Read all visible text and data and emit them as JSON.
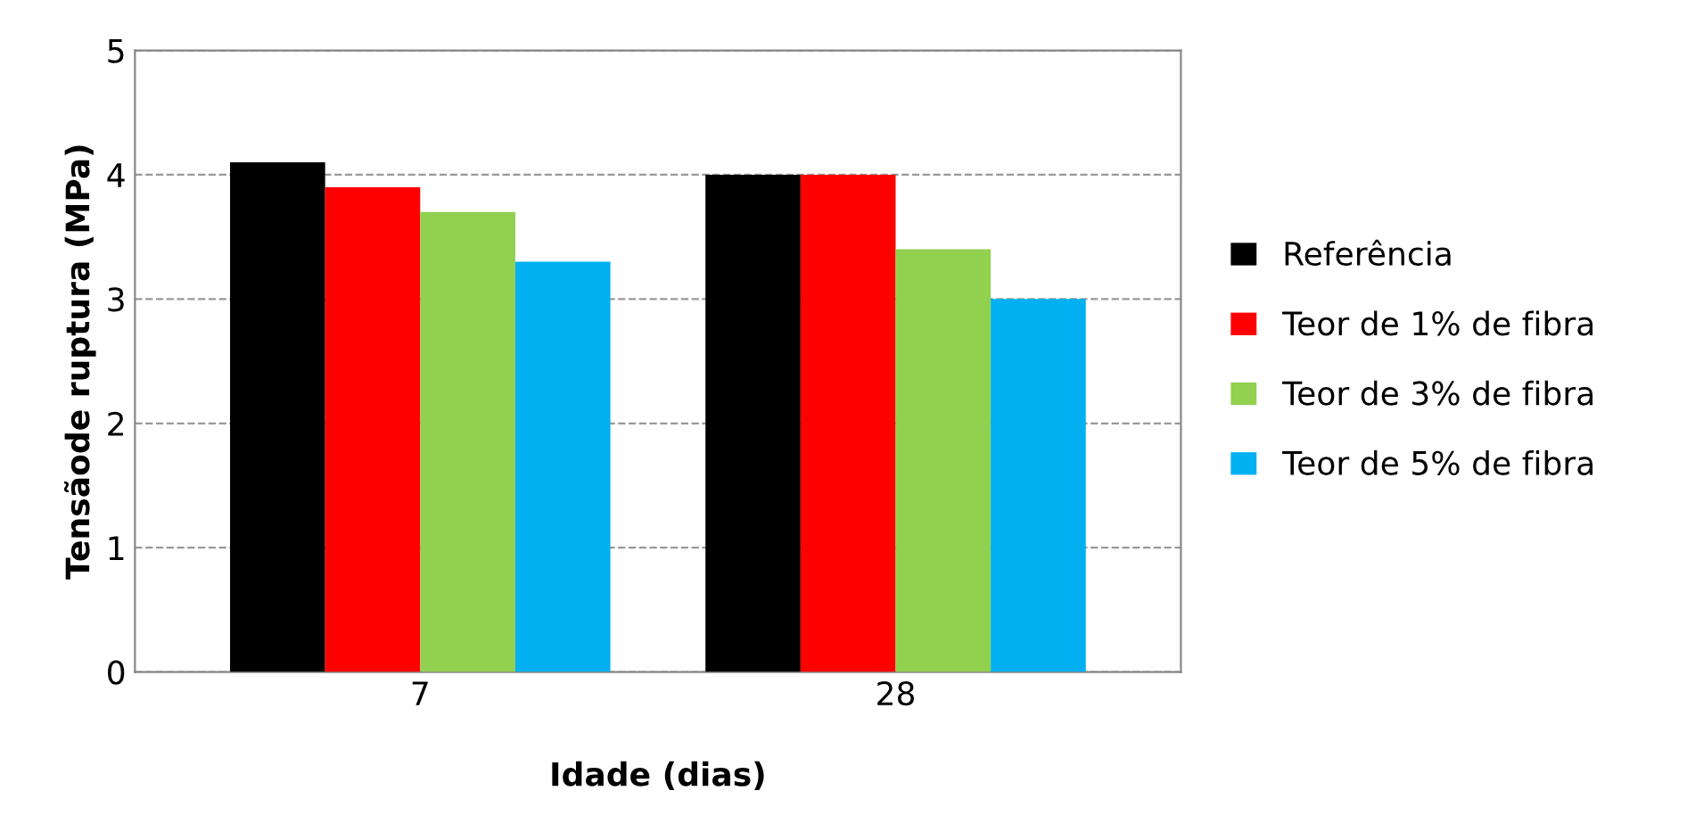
{
  "chart_data": {
    "type": "bar",
    "xlabel": "Idade (dias)",
    "ylabel": "Tensãode ruptura (MPa)",
    "categories": [
      "7",
      "28"
    ],
    "series": [
      {
        "name": "Referência",
        "color": "#000000",
        "values": [
          4.1,
          4.0
        ]
      },
      {
        "name": "Teor de 1% de fibra",
        "color": "#ff0000",
        "values": [
          3.9,
          4.0
        ]
      },
      {
        "name": "Teor de 3% de fibra",
        "color": "#92d050",
        "values": [
          3.7,
          3.4
        ]
      },
      {
        "name": "Teor de 5% de fibra",
        "color": "#00b0f0",
        "values": [
          3.3,
          3.0
        ]
      }
    ],
    "ylim": [
      0,
      5
    ],
    "yticks": [
      0,
      1,
      2,
      3,
      4,
      5
    ],
    "grid": "y",
    "legend": "right"
  }
}
